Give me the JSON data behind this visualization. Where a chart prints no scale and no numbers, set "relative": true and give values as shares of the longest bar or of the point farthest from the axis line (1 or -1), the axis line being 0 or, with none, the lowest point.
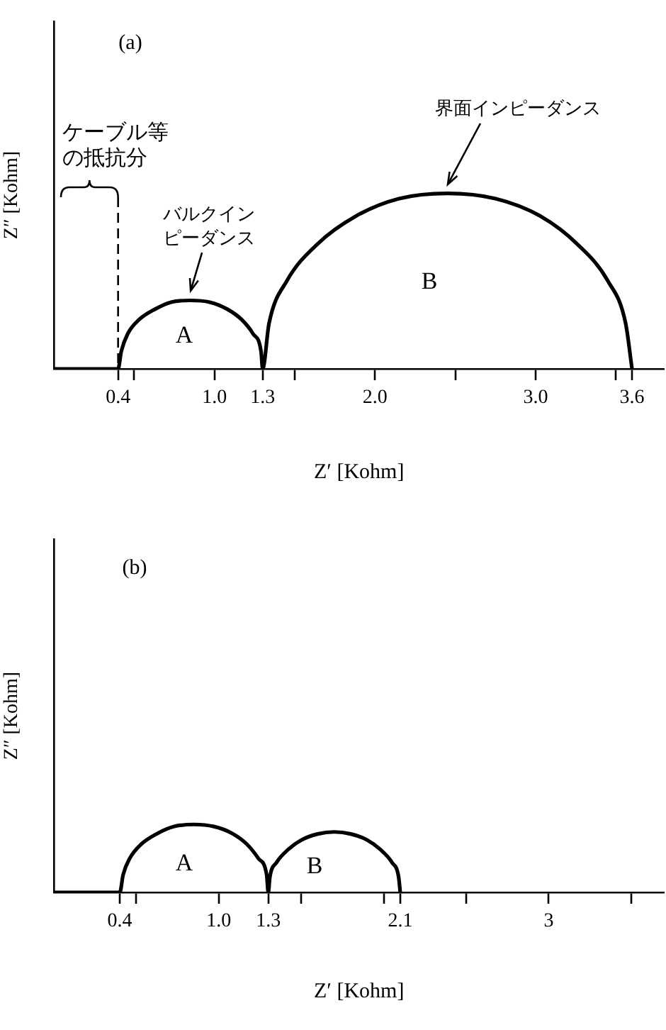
{
  "chart_data": [
    {
      "type": "line",
      "title": "(a)",
      "xlabel": "Z′ [Kohm]",
      "ylabel": "Z″ [Kohm]",
      "relative": true,
      "tick_labels": "x",
      "marker": "none",
      "x": [
        0,
        0.4,
        0.42,
        0.46,
        0.53,
        0.63,
        0.73,
        0.85,
        0.97,
        1.08,
        1.17,
        1.24,
        1.29,
        1.3,
        1.34,
        1.45,
        1.64,
        1.88,
        2.15,
        2.45,
        2.75,
        3.03,
        3.26,
        3.45,
        3.56,
        3.6
      ],
      "series": [
        {
          "color": "#000000",
          "values": [
            0,
            0,
            0.1,
            0.2,
            0.28,
            0.34,
            0.38,
            0.39,
            0.38,
            0.34,
            0.28,
            0.2,
            0.1,
            0,
            0.26,
            0.5,
            0.71,
            0.87,
            0.97,
            1,
            0.97,
            0.87,
            0.71,
            0.5,
            0.26,
            0
          ]
        }
      ],
      "xlim": [
        0,
        3.8
      ],
      "xticks": [
        0.4,
        {
          "value": 0.5,
          "label": null
        },
        {
          "value": 1,
          "label": "1.0"
        },
        1.3,
        {
          "value": 1.5,
          "label": null
        },
        {
          "value": 2,
          "label": "2.0"
        },
        {
          "value": 2.5,
          "label": null
        },
        {
          "value": 3,
          "label": "3.0"
        },
        {
          "value": 3.5,
          "label": null
        },
        3.6
      ],
      "ref_lines": [
        {
          "axis": "x",
          "value": 0.4,
          "label": "ケーブル等の抵抗分",
          "line_style": "dashed"
        }
      ],
      "annotations": [
        {
          "text": "バルクインピーダンス",
          "x": 0.85,
          "y": 0.39
        },
        {
          "text": "界面インピーダンス",
          "x": 2.45,
          "y": 1
        },
        "A",
        "B"
      ]
    },
    {
      "type": "line",
      "title": "(b)",
      "xlabel": "Z′ [Kohm]",
      "ylabel": "Z″ [Kohm]",
      "relative": true,
      "tick_labels": "x",
      "marker": "none",
      "x": [
        0,
        0.4,
        0.42,
        0.46,
        0.53,
        0.63,
        0.73,
        0.85,
        0.97,
        1.08,
        1.17,
        1.24,
        1.29,
        1.3,
        1.31,
        1.35,
        1.42,
        1.5,
        1.6,
        1.7,
        1.8,
        1.9,
        1.98,
        2.05,
        2.09,
        2.1
      ],
      "series": [
        {
          "color": "#000000",
          "values": [
            0,
            0,
            0.26,
            0.5,
            0.71,
            0.87,
            0.97,
            1,
            0.97,
            0.87,
            0.71,
            0.5,
            0.26,
            0,
            0.23,
            0.44,
            0.63,
            0.77,
            0.86,
            0.89,
            0.86,
            0.77,
            0.63,
            0.44,
            0.23,
            0
          ]
        }
      ],
      "xlim": [
        0,
        3.7
      ],
      "xticks": [
        0.4,
        {
          "value": 0.5,
          "label": null
        },
        {
          "value": 1,
          "label": "1.0"
        },
        1.3,
        {
          "value": 1.5,
          "label": null
        },
        {
          "value": 2,
          "label": null
        },
        2.1,
        {
          "value": 2.5,
          "label": null
        },
        3,
        {
          "value": 3.5,
          "label": null
        }
      ],
      "annotations": [
        "A",
        "B"
      ]
    }
  ]
}
